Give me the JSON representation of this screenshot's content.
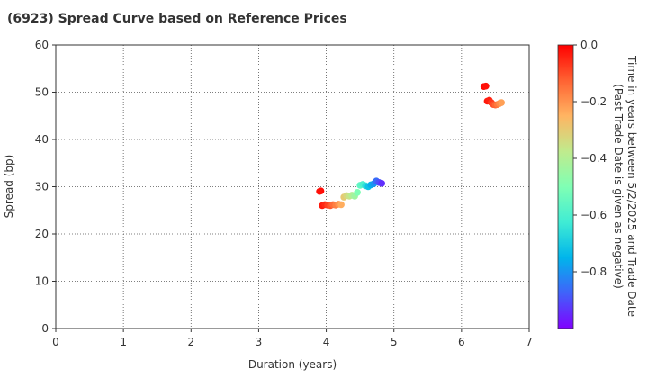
{
  "chart_data": {
    "type": "scatter",
    "title": "(6923)   Spread Curve based on Reference Prices",
    "xlabel": "Duration (years)",
    "ylabel": "Spread (bp)",
    "xlim": [
      0,
      7
    ],
    "ylim": [
      0,
      60
    ],
    "xticks": [
      "0",
      "1",
      "2",
      "3",
      "4",
      "5",
      "6",
      "7"
    ],
    "yticks": [
      "0",
      "10",
      "20",
      "30",
      "40",
      "50",
      "60"
    ],
    "grid": true,
    "colorbar": {
      "label_line1": "Time in years between 5/2/2025 and Trade Date",
      "label_line2": "(Past Trade Date is given as negative)",
      "min": -1.0,
      "max": 0.0,
      "ticks": [
        "0.0",
        "−0.2",
        "−0.4",
        "−0.6",
        "−0.8"
      ],
      "colormap": "rainbow"
    },
    "points": [
      {
        "x": 3.92,
        "y": 29.1,
        "t": -0.01
      },
      {
        "x": 3.9,
        "y": 29.0,
        "t": -0.02
      },
      {
        "x": 3.94,
        "y": 26.0,
        "t": -0.03
      },
      {
        "x": 3.98,
        "y": 26.2,
        "t": -0.05
      },
      {
        "x": 4.02,
        "y": 26.1,
        "t": -0.08
      },
      {
        "x": 4.06,
        "y": 26.0,
        "t": -0.11
      },
      {
        "x": 4.1,
        "y": 26.2,
        "t": -0.14
      },
      {
        "x": 4.14,
        "y": 26.1,
        "t": -0.17
      },
      {
        "x": 4.18,
        "y": 26.3,
        "t": -0.2
      },
      {
        "x": 4.22,
        "y": 26.2,
        "t": -0.24
      },
      {
        "x": 4.26,
        "y": 27.8,
        "t": -0.3
      },
      {
        "x": 4.3,
        "y": 28.1,
        "t": -0.33
      },
      {
        "x": 4.34,
        "y": 28.0,
        "t": -0.36
      },
      {
        "x": 4.38,
        "y": 28.2,
        "t": -0.4
      },
      {
        "x": 4.42,
        "y": 28.0,
        "t": -0.44
      },
      {
        "x": 4.46,
        "y": 28.8,
        "t": -0.5
      },
      {
        "x": 4.5,
        "y": 30.3,
        "t": -0.56
      },
      {
        "x": 4.54,
        "y": 30.5,
        "t": -0.6
      },
      {
        "x": 4.58,
        "y": 30.2,
        "t": -0.66
      },
      {
        "x": 4.62,
        "y": 30.0,
        "t": -0.72
      },
      {
        "x": 4.66,
        "y": 30.4,
        "t": -0.76
      },
      {
        "x": 4.7,
        "y": 30.6,
        "t": -0.8
      },
      {
        "x": 4.74,
        "y": 31.2,
        "t": -0.86
      },
      {
        "x": 4.78,
        "y": 30.9,
        "t": -0.9
      },
      {
        "x": 4.82,
        "y": 30.7,
        "t": -0.94
      },
      {
        "x": 6.33,
        "y": 51.2,
        "t": -0.01
      },
      {
        "x": 6.36,
        "y": 51.3,
        "t": -0.02
      },
      {
        "x": 6.38,
        "y": 48.1,
        "t": -0.03
      },
      {
        "x": 6.41,
        "y": 48.3,
        "t": -0.04
      },
      {
        "x": 6.44,
        "y": 47.8,
        "t": -0.07
      },
      {
        "x": 6.47,
        "y": 47.4,
        "t": -0.1
      },
      {
        "x": 6.5,
        "y": 47.3,
        "t": -0.13
      },
      {
        "x": 6.53,
        "y": 47.4,
        "t": -0.16
      },
      {
        "x": 6.56,
        "y": 47.6,
        "t": -0.19
      },
      {
        "x": 6.59,
        "y": 47.8,
        "t": -0.22
      }
    ]
  }
}
